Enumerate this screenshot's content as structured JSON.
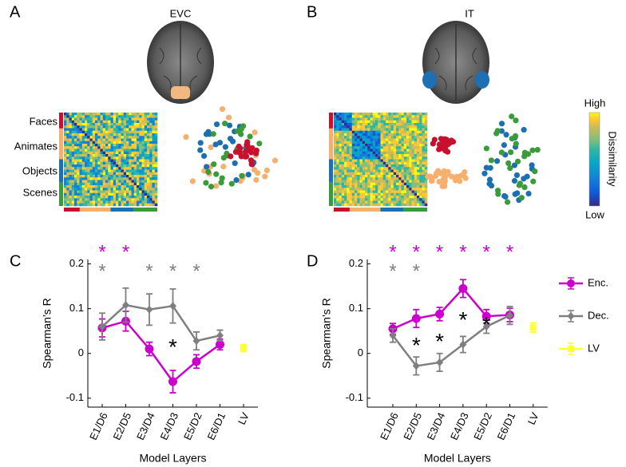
{
  "panel_labels": [
    "A",
    "B",
    "C",
    "D"
  ],
  "rsa": {
    "regions": [
      "EVC",
      "IT"
    ],
    "categories": [
      "Faces",
      "Animates",
      "Objects",
      "Scenes"
    ],
    "colorbar": {
      "high": "High",
      "low": "Low",
      "label": "Dissimilarity"
    }
  },
  "chart_data": [
    {
      "type": "line",
      "ylabel": "Spearman’s R",
      "xlabel": "Model Layers",
      "categories": [
        "E1/D6",
        "E2/D5",
        "E3/D4",
        "E4/D3",
        "E5/D2",
        "E6/D1",
        "LV"
      ],
      "ylim": [
        -0.12,
        0.21
      ],
      "yticks": [
        -0.1,
        0,
        0.1,
        0.2
      ],
      "series": [
        {
          "name": "Enc.",
          "color": "#cc00cc",
          "values": [
            0.057,
            0.072,
            0.01,
            -0.063,
            -0.018,
            0.02,
            null
          ],
          "errors": [
            0.02,
            0.022,
            0.015,
            0.025,
            0.015,
            0.012,
            null
          ],
          "significance": [
            "*",
            "*",
            null,
            null,
            null,
            null,
            null
          ]
        },
        {
          "name": "Dec.",
          "color": "#7f7f7f",
          "values": [
            0.06,
            0.108,
            0.098,
            0.106,
            0.028,
            0.04,
            null
          ],
          "errors": [
            0.03,
            0.038,
            0.035,
            0.038,
            0.02,
            0.012,
            null
          ],
          "significance": [
            "*",
            null,
            "*",
            "*",
            "*",
            null,
            null
          ]
        },
        {
          "name": "LV",
          "color": "#ffff33",
          "values": [
            null,
            null,
            null,
            null,
            null,
            null,
            0.012
          ],
          "errors": [
            null,
            null,
            null,
            null,
            null,
            null,
            0.008
          ]
        }
      ],
      "difference": [
        null,
        null,
        null,
        "*",
        null,
        null,
        null
      ]
    },
    {
      "type": "line",
      "ylabel": "Spearman’s R",
      "xlabel": "Model Layers",
      "categories": [
        "E1/D6",
        "E2/D5",
        "E3/D4",
        "E4/D3",
        "E5/D2",
        "E6/D1",
        "LV"
      ],
      "ylim": [
        -0.12,
        0.21
      ],
      "yticks": [
        -0.1,
        0,
        0.1,
        0.2
      ],
      "legend": "right",
      "series": [
        {
          "name": "Enc.",
          "color": "#cc00cc",
          "values": [
            0.055,
            0.078,
            0.088,
            0.145,
            0.083,
            0.086,
            null
          ],
          "errors": [
            0.012,
            0.02,
            0.015,
            0.02,
            0.015,
            0.015,
            null
          ],
          "significance": [
            "*",
            "*",
            "*",
            "*",
            "*",
            "*",
            null
          ]
        },
        {
          "name": "Dec.",
          "color": "#7f7f7f",
          "values": [
            0.04,
            -0.028,
            -0.02,
            0.02,
            0.06,
            0.085,
            null
          ],
          "errors": [
            0.015,
            0.02,
            0.02,
            0.018,
            0.015,
            0.02,
            null
          ],
          "significance": [
            "*",
            "*",
            null,
            null,
            null,
            null,
            null
          ]
        },
        {
          "name": "LV",
          "color": "#ffff33",
          "values": [
            null,
            null,
            null,
            null,
            null,
            null,
            0.058
          ],
          "errors": [
            null,
            null,
            null,
            null,
            null,
            null,
            0.01
          ]
        }
      ],
      "difference": [
        null,
        "*",
        "*",
        "*",
        "*",
        null,
        null
      ]
    }
  ]
}
